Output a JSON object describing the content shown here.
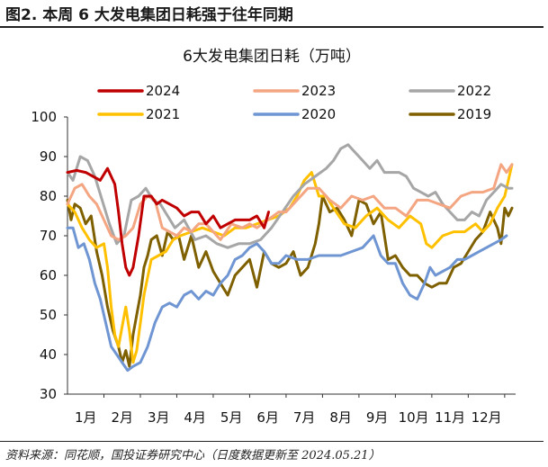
{
  "figure_title": "图2. 本周 6 大发电集团日耗强于往年同期",
  "source": "资料来源：同花顺，国投证券研究中心（日度数据更新至 2024.05.21）",
  "colors": {
    "2024": "#c00000",
    "2023": "#f4a582",
    "2022": "#a6a6a6",
    "2021": "#ffc000",
    "2020": "#6f95d2",
    "2019": "#7f6000"
  },
  "chart_data": {
    "type": "line",
    "title": "6大发电集团日耗（万吨）",
    "xlabel": "",
    "ylabel": "",
    "xlim": [
      0,
      12.3
    ],
    "ylim": [
      30,
      100
    ],
    "yticks": [
      30,
      40,
      50,
      60,
      70,
      80,
      90,
      100
    ],
    "xticks": [
      {
        "x": 0.5,
        "label": "1月"
      },
      {
        "x": 1.5,
        "label": "2月"
      },
      {
        "x": 2.5,
        "label": "3月"
      },
      {
        "x": 3.5,
        "label": "4月"
      },
      {
        "x": 4.5,
        "label": "5月"
      },
      {
        "x": 5.5,
        "label": "6月"
      },
      {
        "x": 6.5,
        "label": "7月"
      },
      {
        "x": 7.5,
        "label": "8月"
      },
      {
        "x": 8.5,
        "label": "9月"
      },
      {
        "x": 9.5,
        "label": "10月"
      },
      {
        "x": 10.5,
        "label": "11月"
      },
      {
        "x": 11.5,
        "label": "12月"
      }
    ],
    "legend_position": "top",
    "series": [
      {
        "name": "2024",
        "color": "#c00000",
        "x": [
          0,
          0.25,
          0.5,
          0.7,
          0.9,
          1.1,
          1.3,
          1.4,
          1.5,
          1.6,
          1.7,
          1.8,
          1.95,
          2.1,
          2.3,
          2.45,
          2.6,
          2.8,
          3.0,
          3.2,
          3.4,
          3.6,
          3.8,
          4.0,
          4.2,
          4.4,
          4.6,
          4.8,
          5.0,
          5.2,
          5.4,
          5.52
        ],
        "y": [
          86,
          86.5,
          86,
          85,
          84,
          87,
          83,
          76,
          68,
          62,
          60,
          62,
          70,
          80,
          80,
          78,
          79,
          78,
          77,
          75,
          76,
          76,
          73,
          75,
          72,
          73,
          74,
          74,
          74,
          75,
          72,
          76
        ]
      },
      {
        "name": "2023",
        "color": "#f4a582",
        "x": [
          0,
          0.2,
          0.4,
          0.6,
          0.8,
          1.0,
          1.2,
          1.4,
          1.6,
          1.8,
          2.0,
          2.2,
          2.4,
          2.6,
          2.8,
          3.0,
          3.2,
          3.4,
          3.6,
          3.8,
          4.0,
          4.2,
          4.5,
          4.8,
          5.0,
          5.2,
          5.5,
          5.8,
          6.0,
          6.3,
          6.6,
          6.9,
          7.2,
          7.5,
          7.8,
          8.1,
          8.4,
          8.7,
          9.0,
          9.3,
          9.6,
          9.9,
          10.2,
          10.5,
          10.8,
          11.1,
          11.4,
          11.7,
          11.9,
          12.05,
          12.2
        ],
        "y": [
          78,
          82,
          83,
          80,
          78,
          74,
          70,
          69,
          70,
          72,
          78,
          80,
          79,
          72,
          71,
          70,
          72,
          71,
          73,
          73,
          71,
          69,
          73,
          72,
          73,
          72,
          74,
          76,
          76,
          79,
          82,
          82,
          79,
          77,
          80,
          79,
          80,
          77,
          77,
          75,
          79,
          79,
          78,
          77,
          80,
          81,
          81,
          82,
          88,
          86,
          88
        ]
      },
      {
        "name": "2022",
        "color": "#a6a6a6",
        "x": [
          0,
          0.15,
          0.35,
          0.55,
          0.75,
          0.95,
          1.15,
          1.35,
          1.55,
          1.75,
          1.95,
          2.15,
          2.35,
          2.55,
          2.75,
          2.95,
          3.2,
          3.5,
          3.8,
          4.1,
          4.4,
          4.7,
          5.0,
          5.3,
          5.6,
          5.9,
          6.2,
          6.5,
          6.8,
          7.1,
          7.3,
          7.5,
          7.7,
          7.9,
          8.1,
          8.3,
          8.5,
          8.7,
          8.9,
          9.1,
          9.3,
          9.5,
          9.7,
          9.9,
          10.1,
          10.3,
          10.5,
          10.7,
          10.9,
          11.1,
          11.3,
          11.5,
          11.7,
          11.9,
          12.1,
          12.2
        ],
        "y": [
          86,
          84,
          90,
          89,
          85,
          79,
          73,
          68,
          70,
          79,
          80,
          82,
          79,
          78,
          75,
          72,
          74,
          69,
          70,
          68,
          67,
          68,
          68,
          69,
          72,
          76,
          80,
          83,
          85,
          87,
          89,
          92,
          93,
          91,
          89,
          87,
          89,
          86,
          86,
          86,
          85,
          82,
          81,
          80,
          81,
          78,
          76,
          74,
          74,
          76,
          75,
          79,
          81,
          83,
          82,
          82
        ]
      },
      {
        "name": "2021",
        "color": "#ffc000",
        "x": [
          0,
          0.2,
          0.4,
          0.6,
          0.8,
          1.0,
          1.1,
          1.2,
          1.3,
          1.4,
          1.5,
          1.6,
          1.7,
          1.8,
          1.9,
          2.0,
          2.1,
          2.3,
          2.5,
          2.7,
          2.9,
          3.1,
          3.4,
          3.7,
          4.0,
          4.3,
          4.6,
          4.9,
          5.2,
          5.5,
          5.8,
          6.1,
          6.3,
          6.5,
          6.7,
          6.9,
          7.1,
          7.3,
          7.6,
          7.9,
          8.2,
          8.5,
          8.8,
          9.1,
          9.4,
          9.7,
          9.85,
          10.0,
          10.3,
          10.6,
          10.9,
          11.2,
          11.4,
          11.6,
          11.8,
          12.0,
          12.2
        ],
        "y": [
          78,
          76,
          72,
          69,
          67,
          68,
          62,
          52,
          45,
          42,
          47,
          52,
          46,
          38,
          41,
          48,
          55,
          64,
          65,
          66,
          69,
          70,
          71,
          72,
          71,
          70,
          72,
          72,
          73,
          74,
          75,
          77,
          80,
          84,
          86,
          80,
          80,
          77,
          73,
          72,
          75,
          77,
          74,
          72,
          75,
          73,
          68,
          67,
          70,
          71,
          71,
          73,
          71,
          73,
          77,
          80,
          88
        ]
      },
      {
        "name": "2020",
        "color": "#6f95d2",
        "x": [
          0,
          0.15,
          0.3,
          0.45,
          0.6,
          0.75,
          0.9,
          1.05,
          1.2,
          1.35,
          1.5,
          1.65,
          1.8,
          2.0,
          2.2,
          2.4,
          2.6,
          2.8,
          3.0,
          3.2,
          3.4,
          3.6,
          3.8,
          4.0,
          4.2,
          4.4,
          4.6,
          4.8,
          5.0,
          5.2,
          5.4,
          5.6,
          5.8,
          6.0,
          6.3,
          6.6,
          6.9,
          7.2,
          7.5,
          7.8,
          8.1,
          8.4,
          8.6,
          8.8,
          9.0,
          9.2,
          9.4,
          9.6,
          9.8,
          9.95,
          10.1,
          10.3,
          10.5,
          10.7,
          10.9,
          11.1,
          11.3,
          11.5,
          11.7,
          11.9,
          12.05
        ],
        "y": [
          72,
          72,
          67,
          68,
          64,
          58,
          54,
          48,
          42,
          40,
          38,
          36,
          37,
          38,
          42,
          48,
          52,
          53,
          52,
          55,
          56,
          54,
          56,
          55,
          58,
          60,
          64,
          65,
          67,
          68,
          66,
          63,
          63,
          65,
          64,
          64,
          65,
          65,
          65,
          66,
          67,
          70,
          65,
          63,
          63,
          58,
          55,
          54,
          58,
          62,
          60,
          61,
          62,
          64,
          64,
          65,
          66,
          67,
          68,
          69,
          70
        ]
      },
      {
        "name": "2019",
        "color": "#7f6000",
        "x": [
          0,
          0.1,
          0.2,
          0.35,
          0.5,
          0.65,
          0.8,
          0.95,
          1.1,
          1.25,
          1.4,
          1.5,
          1.6,
          1.7,
          1.8,
          1.9,
          2.0,
          2.1,
          2.2,
          2.3,
          2.45,
          2.6,
          2.75,
          2.9,
          3.05,
          3.2,
          3.4,
          3.6,
          3.8,
          4.0,
          4.2,
          4.4,
          4.6,
          4.8,
          5.0,
          5.2,
          5.4,
          5.6,
          5.8,
          6.0,
          6.2,
          6.4,
          6.6,
          6.8,
          6.9,
          7.0,
          7.2,
          7.4,
          7.6,
          7.8,
          8.0,
          8.2,
          8.4,
          8.6,
          8.8,
          9.0,
          9.2,
          9.4,
          9.6,
          9.8,
          10.0,
          10.2,
          10.4,
          10.6,
          10.8,
          11.0,
          11.2,
          11.4,
          11.6,
          11.8,
          11.9,
          12.0,
          12.1,
          12.2
        ],
        "y": [
          79,
          74,
          78,
          77,
          73,
          75,
          66,
          60,
          52,
          46,
          42,
          38,
          41,
          37,
          45,
          50,
          55,
          62,
          65,
          69,
          70,
          65,
          71,
          69,
          70,
          64,
          70,
          62,
          66,
          61,
          58,
          55,
          60,
          62,
          64,
          57,
          66,
          63,
          62,
          63,
          66,
          60,
          62,
          68,
          73,
          80,
          76,
          77,
          74,
          70,
          79,
          78,
          73,
          76,
          64,
          65,
          62,
          60,
          60,
          58,
          57,
          58,
          58,
          62,
          63,
          66,
          69,
          71,
          76,
          72,
          68,
          77,
          75,
          77
        ]
      }
    ]
  }
}
